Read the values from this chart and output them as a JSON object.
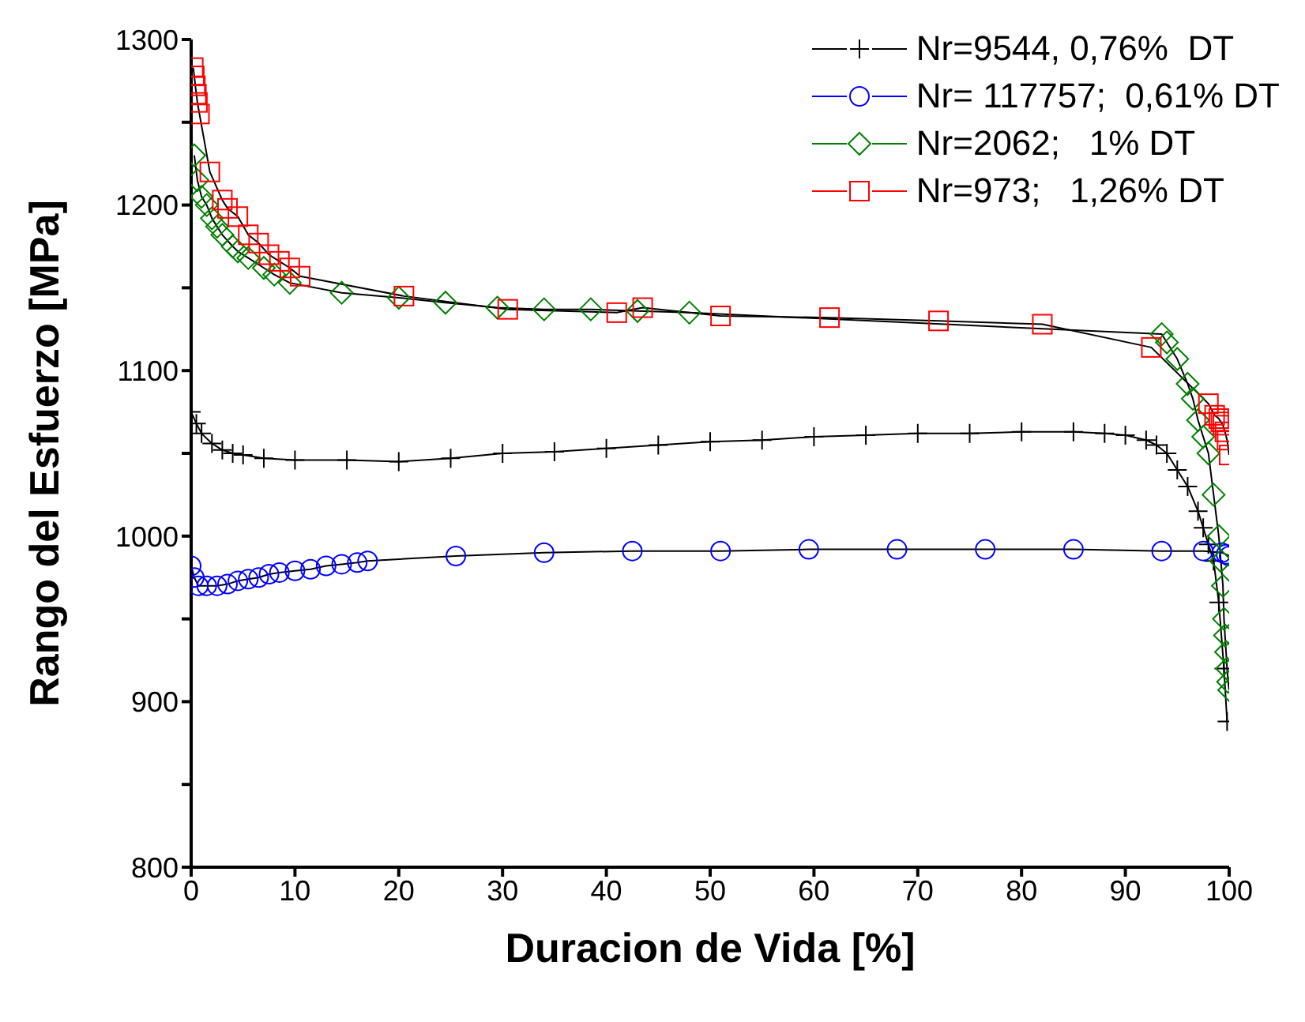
{
  "chart_data": {
    "type": "line",
    "xlabel": "Duracion de Vida [%]",
    "ylabel": "Rango del Esfuerzo [MPa]",
    "xlim": [
      0,
      100
    ],
    "ylim": [
      800,
      1300
    ],
    "xticks": [
      0,
      10,
      20,
      30,
      40,
      50,
      60,
      70,
      80,
      90,
      100
    ],
    "yticks": [
      800,
      {
        "value": 850,
        "label": null
      },
      900,
      {
        "value": 950,
        "label": null
      },
      1000,
      {
        "value": 1050,
        "label": null
      },
      1100,
      {
        "value": 1150,
        "label": null
      },
      1200,
      {
        "value": 1250,
        "label": null
      },
      1300
    ],
    "legend": "top right",
    "line_style": "solid",
    "series": [
      {
        "name": "Nr=9544, 0,76%  DT",
        "color": "#000000",
        "marker": "cross",
        "x": [
          0,
          0.5,
          1,
          2,
          3,
          4,
          5,
          7,
          10,
          15,
          20,
          25,
          30,
          35,
          40,
          45,
          50,
          55,
          60,
          65,
          70,
          75,
          80,
          85,
          88,
          90,
          92,
          93,
          94,
          95,
          96,
          97,
          97.5,
          98,
          98.5,
          99,
          99.5,
          99.8
        ],
        "values": [
          1075,
          1068,
          1062,
          1056,
          1052,
          1050,
          1049,
          1047,
          1046,
          1046,
          1045,
          1047,
          1050,
          1051,
          1053,
          1055,
          1057,
          1058,
          1060,
          1061,
          1062,
          1062,
          1063,
          1063,
          1062,
          1061,
          1058,
          1055,
          1050,
          1040,
          1030,
          1015,
          1005,
          995,
          985,
          960,
          920,
          888
        ]
      },
      {
        "name": "Nr= 117757;  0,61% DT",
        "color": "#0000ff",
        "marker": "circle",
        "x": [
          0,
          0.3,
          0.7,
          1.5,
          2.5,
          3.5,
          4.5,
          5.5,
          6.5,
          7.5,
          8.5,
          10,
          11.5,
          13,
          14.5,
          16,
          17,
          25.5,
          34,
          42.5,
          51,
          59.5,
          68,
          76.5,
          85,
          93.5,
          97.5,
          99.3,
          99.7,
          100
        ],
        "values": [
          982,
          975,
          970,
          970,
          970,
          971,
          973,
          974,
          975,
          977,
          978,
          979,
          980,
          982,
          983,
          984,
          985,
          988,
          990,
          991,
          991,
          992,
          992,
          992,
          992,
          991,
          991,
          990,
          989,
          988
        ]
      },
      {
        "name": "Nr=2062;   1% DT",
        "color": "#008000",
        "marker": "diamond",
        "x": [
          0.3,
          0.6,
          1,
          1.5,
          2,
          2.5,
          3,
          4,
          4.5,
          5.5,
          7,
          8,
          9.5,
          14.5,
          20,
          24.5,
          29.5,
          34,
          38.5,
          43,
          48,
          93.5,
          94,
          95,
          96,
          96.5,
          97,
          97.5,
          98,
          98.5,
          99,
          99.2,
          99.4,
          99.5,
          99.6,
          99.7,
          99.8,
          99.9,
          100
        ],
        "values": [
          1230,
          1215,
          1205,
          1200,
          1192,
          1187,
          1182,
          1175,
          1172,
          1168,
          1162,
          1158,
          1153,
          1147,
          1144,
          1141,
          1138,
          1137,
          1137,
          1136,
          1135,
          1122,
          1117,
          1107,
          1092,
          1083,
          1070,
          1060,
          1050,
          1025,
          1000,
          985,
          970,
          950,
          940,
          930,
          920,
          912,
          907
        ]
      },
      {
        "name": "Nr=973;   1,26% DT",
        "color": "#ff0000",
        "marker": "square",
        "x": [
          0.2,
          0.3,
          0.4,
          0.5,
          0.6,
          0.8,
          1.8,
          3,
          3.5,
          4.5,
          5.5,
          6.5,
          7.5,
          8.5,
          9.5,
          10.5,
          20.5,
          30.5,
          41,
          43.5,
          51,
          61.5,
          72,
          82,
          92.5,
          98,
          98.6,
          99,
          99.2,
          99.4,
          99.6,
          99.8,
          100
        ],
        "values": [
          1283,
          1278,
          1272,
          1267,
          1262,
          1255,
          1220,
          1203,
          1198,
          1193,
          1182,
          1177,
          1170,
          1166,
          1162,
          1157,
          1145,
          1137,
          1135,
          1138,
          1133,
          1132,
          1130,
          1128,
          1114,
          1080,
          1073,
          1071,
          1069,
          1067,
          1063,
          1058,
          1049
        ]
      }
    ]
  }
}
